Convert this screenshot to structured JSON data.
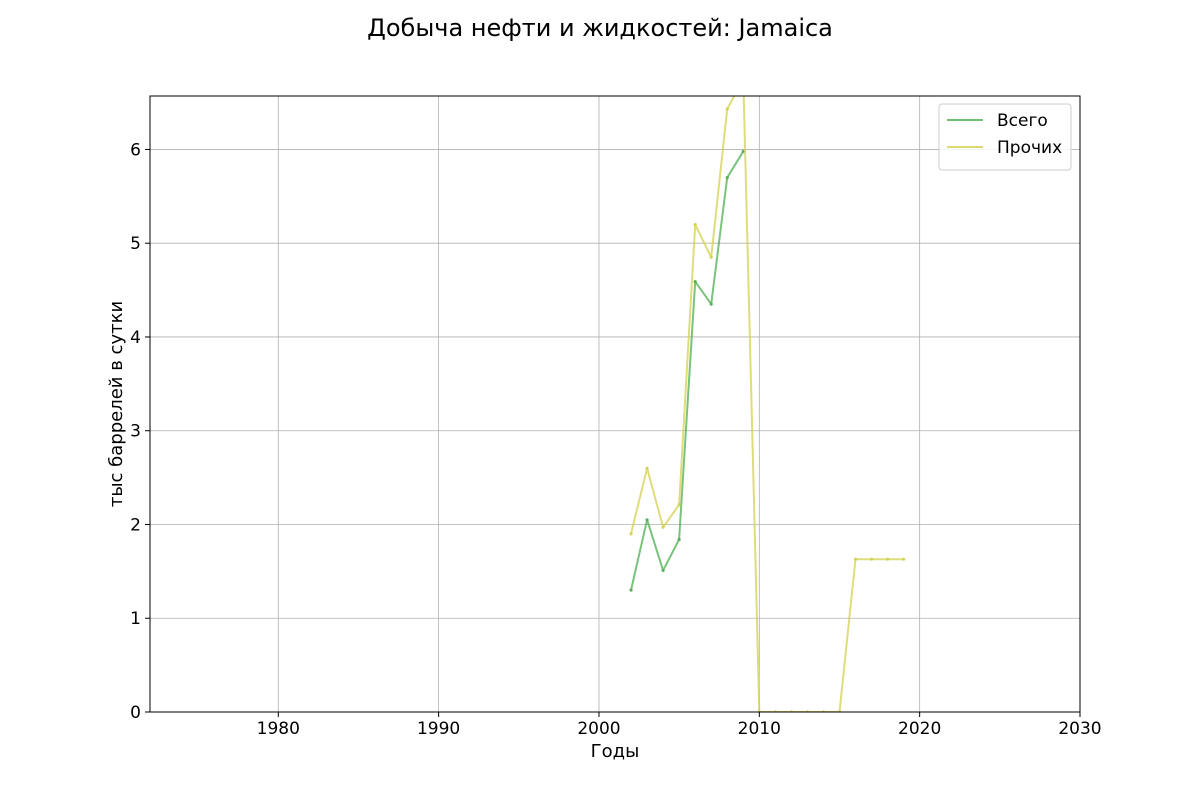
{
  "chart_data": {
    "type": "line",
    "title": "Добыча нефти и жидкостей: Jamaica",
    "xlabel": "Годы",
    "ylabel": "тыс баррелей в сутки",
    "xlim": [
      1972,
      2030
    ],
    "ylim": [
      0,
      6.57
    ],
    "xticks": [
      1980,
      1990,
      2000,
      2010,
      2020,
      2030
    ],
    "yticks": [
      0,
      1,
      2,
      3,
      4,
      5,
      6
    ],
    "grid": true,
    "legend_position": "top-right",
    "series": [
      {
        "name": "Всего",
        "color": "#4caf50",
        "x": [
          2002,
          2003,
          2004,
          2005,
          2006,
          2007,
          2008,
          2009
        ],
        "y": [
          1.3,
          2.05,
          1.51,
          1.84,
          4.59,
          4.35,
          5.7,
          5.98
        ]
      },
      {
        "name": "Прочих",
        "color": "#d4d04e",
        "x": [
          2002,
          2003,
          2004,
          2005,
          2006,
          2007,
          2008,
          2009,
          2010,
          2011,
          2012,
          2013,
          2014,
          2015,
          2016,
          2017,
          2018,
          2019
        ],
        "y": [
          1.9,
          2.6,
          1.97,
          2.21,
          5.2,
          4.85,
          6.43,
          6.75,
          0,
          0,
          0,
          0,
          0,
          0,
          1.63,
          1.63,
          1.63,
          1.63
        ]
      }
    ]
  }
}
